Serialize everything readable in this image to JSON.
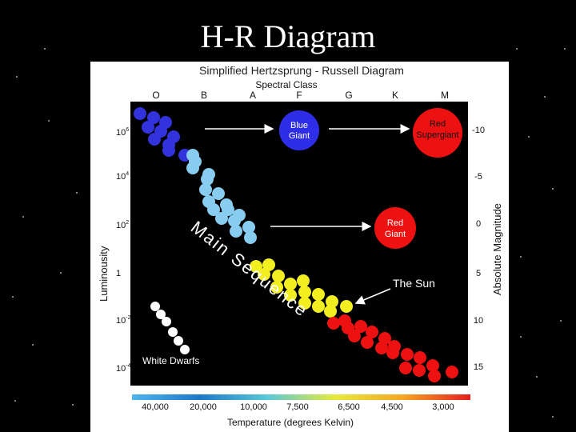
{
  "slide_title": "H-R Diagram",
  "diagram": {
    "title": "Simplified Hertzsprung - Russell Diagram",
    "top_axis_label": "Spectral Class",
    "spectral_classes": [
      "O",
      "B",
      "A",
      "F",
      "G",
      "K",
      "M"
    ],
    "left_axis_label": "Luminousity",
    "luminosity_ticks": [
      {
        "base": "10",
        "exp": "6"
      },
      {
        "base": "10",
        "exp": "4"
      },
      {
        "base": "10",
        "exp": "2"
      },
      {
        "base": "1",
        "exp": ""
      },
      {
        "base": "10",
        "exp": "-2"
      },
      {
        "base": "10",
        "exp": "-4"
      }
    ],
    "right_axis_label": "Absolute Magnitude",
    "magnitude_ticks": [
      "-10",
      "-5",
      "0",
      "5",
      "10",
      "15"
    ],
    "bottom_axis_label": "Temperature (degrees Kelvin)",
    "temperature_ticks": [
      "40,000",
      "20,000",
      "10,000",
      "7,500",
      "6,500",
      "4,500",
      "3,000"
    ],
    "main_sequence_label": "Main Sequence",
    "white_dwarfs_label": "White Dwarfs",
    "sun_label": "The Sun",
    "blue_giant_label": [
      "Blue",
      "Giant"
    ],
    "red_supergiant_label": [
      "Red",
      "Supergiant"
    ],
    "red_giant_label": [
      "Red",
      "Giant"
    ],
    "colors": {
      "hot_blue": "#3333dd",
      "light_blue": "#88ccf0",
      "yellow": "#f2ee20",
      "red": "#ee1111",
      "white_dwarf": "#ffffff",
      "giant_blue": "#2e2ee8",
      "giant_red": "#ee1111"
    },
    "temperature_gradient": [
      "#4fb4ee",
      "#1e78c8",
      "#5ac8d8",
      "#e6ea3c",
      "#f5a623",
      "#e61e1e"
    ]
  }
}
